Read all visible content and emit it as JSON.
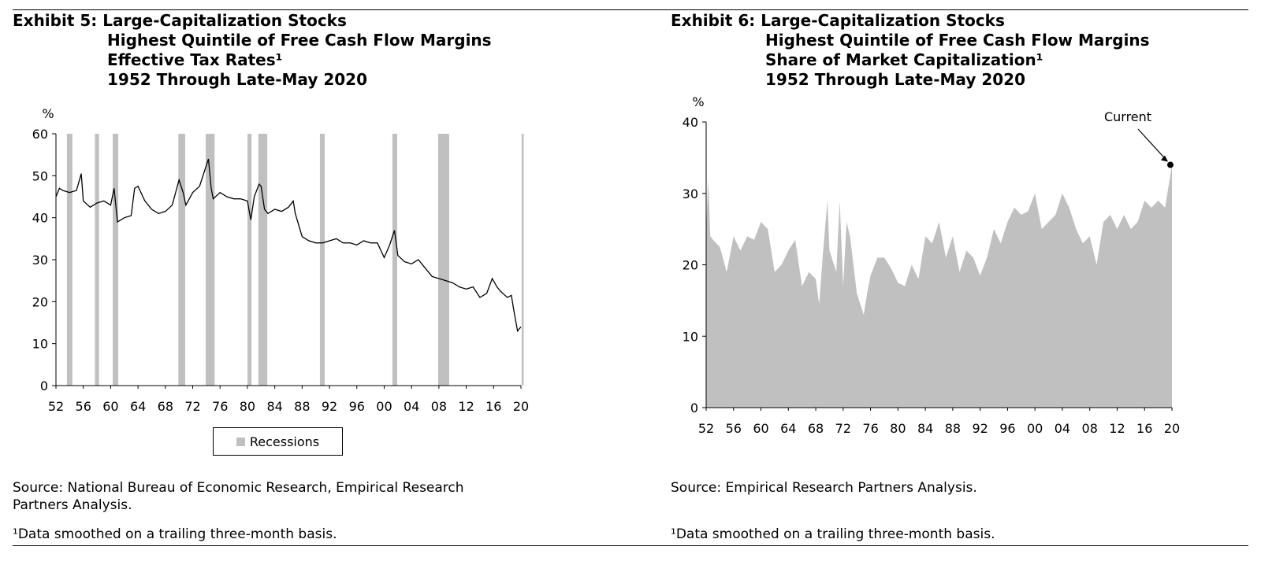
{
  "chart_data": [
    {
      "type": "line",
      "title_lines": [
        "Exhibit 5: Large-Capitalization Stocks",
        "Highest Quintile of Free Cash Flow Margins",
        "Effective Tax Rates¹",
        "1952 Through Late-May 2020"
      ],
      "ylabel": "%",
      "ylim": [
        0,
        60
      ],
      "yticks": [
        "0",
        "10",
        "20",
        "30",
        "40",
        "50",
        "60"
      ],
      "xlim": [
        1952,
        2020
      ],
      "xticks": [
        "52",
        "56",
        "60",
        "64",
        "68",
        "72",
        "76",
        "80",
        "84",
        "88",
        "92",
        "96",
        "00",
        "04",
        "08",
        "12",
        "16",
        "20"
      ],
      "legend": "Recessions",
      "recessions": [
        [
          1953.6,
          1954.4
        ],
        [
          1957.7,
          1958.3
        ],
        [
          1960.3,
          1961.1
        ],
        [
          1969.9,
          1970.9
        ],
        [
          1973.9,
          1975.2
        ],
        [
          1980.0,
          1980.6
        ],
        [
          1981.6,
          1982.9
        ],
        [
          1990.6,
          1991.3
        ],
        [
          2001.2,
          2001.9
        ],
        [
          2007.9,
          2009.5
        ],
        [
          2020.1,
          2020.4
        ]
      ],
      "series": [
        {
          "name": "Effective Tax Rate",
          "x": [
            1952,
            1952.5,
            1953,
            1954,
            1955,
            1955.7,
            1956,
            1957,
            1958,
            1959,
            1960,
            1960.5,
            1961,
            1962,
            1963,
            1963.5,
            1964,
            1965,
            1966,
            1967,
            1968,
            1969,
            1970,
            1970.6,
            1971,
            1972,
            1973,
            1974.3,
            1974.7,
            1975,
            1976,
            1977,
            1978,
            1979,
            1980,
            1980.5,
            1981,
            1981.7,
            1982,
            1982.5,
            1983,
            1984,
            1985,
            1986,
            1986.7,
            1987,
            1988,
            1989,
            1990,
            1991,
            1992,
            1993,
            1994,
            1995,
            1996,
            1997,
            1998,
            1999,
            2000,
            2000.8,
            2001.5,
            2002,
            2003,
            2004,
            2005,
            2006,
            2007,
            2008,
            2009,
            2010,
            2011,
            2012,
            2013,
            2014,
            2015,
            2015.8,
            2016.5,
            2017,
            2018,
            2018.6,
            2019,
            2019.5,
            2020
          ],
          "values": [
            45,
            47,
            46.5,
            46,
            46.5,
            50.5,
            44,
            42.5,
            43.5,
            44,
            43,
            47,
            39,
            40,
            40.5,
            47,
            47.5,
            44,
            42,
            41,
            41.5,
            43,
            49,
            46,
            43,
            46,
            47.5,
            54,
            47,
            44.5,
            46,
            45,
            44.5,
            44.5,
            44,
            39.5,
            45,
            48,
            47.5,
            42,
            41,
            42,
            41.5,
            42.5,
            44,
            41,
            35.5,
            34.5,
            34,
            34,
            34.5,
            35,
            34,
            34,
            33.5,
            34.5,
            34,
            34,
            30.5,
            33.5,
            37,
            31,
            29.5,
            29,
            30,
            28,
            26,
            25.5,
            25,
            24.5,
            23.5,
            23,
            23.5,
            21,
            22,
            25.5,
            23.5,
            22.5,
            21,
            21.5,
            17.5,
            13,
            14
          ]
        }
      ]
    },
    {
      "type": "area",
      "title_lines": [
        "Exhibit 6: Large-Capitalization Stocks",
        "Highest Quintile of Free Cash Flow Margins",
        "Share of Market Capitalization¹",
        "1952 Through Late-May 2020"
      ],
      "ylabel": "%",
      "ylim": [
        0,
        40
      ],
      "yticks": [
        "0",
        "10",
        "20",
        "30",
        "40"
      ],
      "xlim": [
        1952,
        2020
      ],
      "xticks": [
        "52",
        "56",
        "60",
        "64",
        "68",
        "72",
        "76",
        "80",
        "84",
        "88",
        "92",
        "96",
        "00",
        "04",
        "08",
        "12",
        "16",
        "20"
      ],
      "annotation": "Current",
      "current_value": 34,
      "series": [
        {
          "name": "Share of Market Capitalization",
          "x": [
            1952,
            1952.3,
            1952.6,
            1953,
            1954,
            1955,
            1956,
            1957,
            1958,
            1959,
            1960,
            1961,
            1962,
            1963,
            1964,
            1965,
            1966,
            1967,
            1968,
            1968.5,
            1969,
            1969.7,
            1970,
            1971,
            1971.5,
            1972,
            1972.5,
            1973,
            1974,
            1975,
            1975.5,
            1976,
            1977,
            1978,
            1979,
            1980,
            1981,
            1982,
            1983,
            1984,
            1985,
            1986,
            1987,
            1988,
            1989,
            1990,
            1991,
            1992,
            1993,
            1994,
            1995,
            1996,
            1997,
            1998,
            1999,
            2000,
            2001,
            2002,
            2003,
            2004,
            2005,
            2006,
            2007,
            2008,
            2009,
            2010,
            2011,
            2012,
            2013,
            2014,
            2015,
            2016,
            2017,
            2018,
            2019,
            2019.5,
            2020
          ],
          "values": [
            25,
            32,
            24,
            23.5,
            22.5,
            19,
            24,
            22,
            24,
            23.5,
            26,
            25,
            19,
            20,
            22,
            23.5,
            17,
            19,
            18,
            14.5,
            21,
            29,
            22,
            19,
            29,
            17,
            26,
            24,
            16,
            13,
            16,
            18.5,
            21,
            21,
            19.5,
            17.5,
            17,
            20,
            18,
            24,
            23,
            26,
            21,
            24,
            19,
            22,
            21,
            18.5,
            21,
            25,
            23,
            26,
            28,
            27,
            27.5,
            30,
            25,
            26,
            27,
            30,
            28,
            25,
            23,
            24,
            20,
            26,
            27,
            25,
            27,
            25,
            26,
            29,
            28,
            29,
            28,
            31,
            34
          ]
        }
      ]
    }
  ],
  "sources": {
    "left_line1": "Source: National Bureau of Economic Research, Empirical Research",
    "left_line2": "Partners Analysis.",
    "right_line1": "Source: Empirical Research Partners Analysis.",
    "footnote": "¹Data smoothed on a trailing three-month basis."
  },
  "colors": {
    "recession": "#c0c0c0",
    "area": "#c0c0c0",
    "line": "#000000"
  }
}
